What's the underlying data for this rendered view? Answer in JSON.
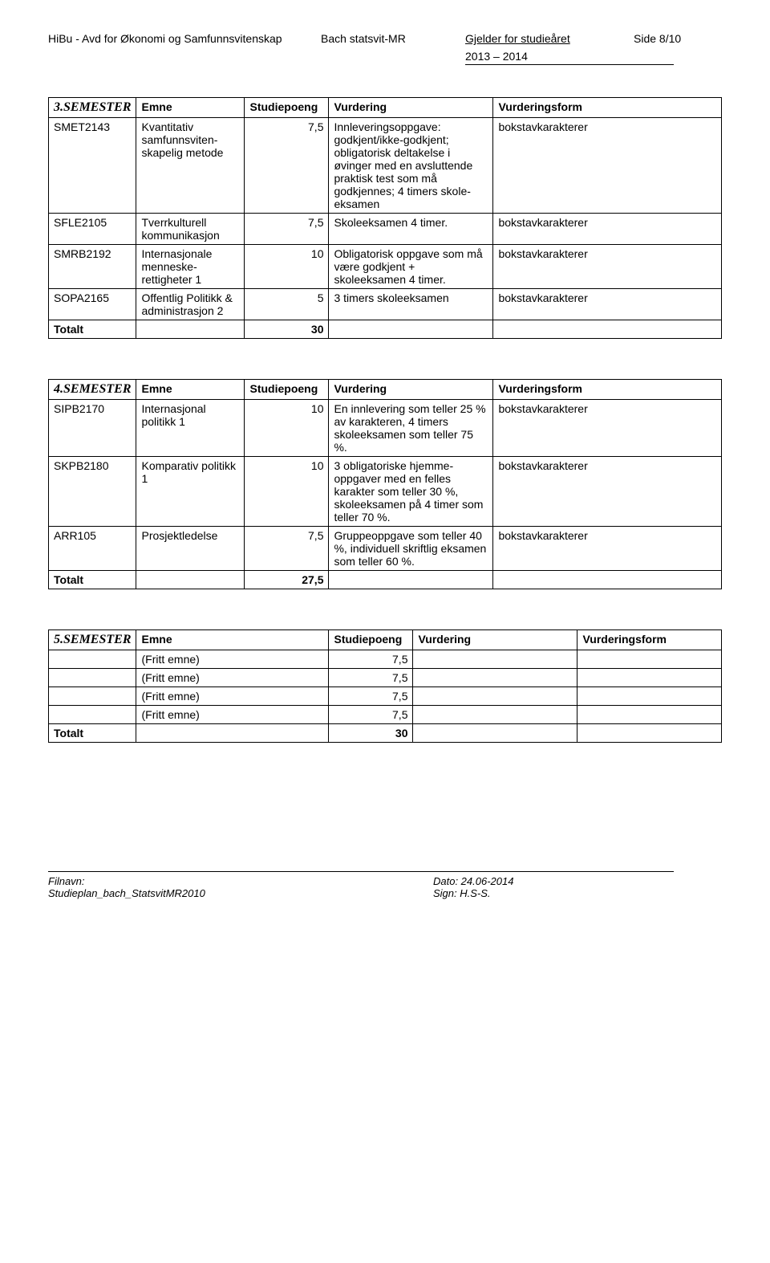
{
  "header": {
    "dept": "HiBu - Avd for Økonomi og Samfunnsvitenskap",
    "program": "Bach statsvit-MR",
    "applies_label": "Gjelder for studieåret",
    "year": "2013 – 2014",
    "page": "Side 8/10"
  },
  "table3": {
    "sem_label": "3.SEMESTER",
    "headers": [
      "Emne",
      "Studiepoeng",
      "Vurdering",
      "Vurderingsform"
    ],
    "rows": [
      {
        "code": "SMET2143",
        "emne": "Kvantitativ samfunnsviten-skapelig metode",
        "sp": "7,5",
        "vurd": "Innleveringsoppgave: godkjent/ikke-godkjent; obligatorisk deltakelse i øvinger med en avsluttende praktisk test som må godkjennes; 4 timers skole-eksamen",
        "form": "bokstavkarakterer"
      },
      {
        "code": "SFLE2105",
        "emne": "Tverrkulturell kommunikasjon",
        "sp": "7,5",
        "vurd": "Skoleeksamen 4 timer.",
        "form": "bokstavkarakterer"
      },
      {
        "code": "SMRB2192",
        "emne": "Internasjonale menneske-rettigheter 1",
        "sp": "10",
        "vurd": "Obligatorisk oppgave som må være godkjent + skoleeksamen 4 timer.",
        "form": "bokstavkarakterer"
      },
      {
        "code": "SOPA2165",
        "emne": "Offentlig Politikk & administrasjon 2",
        "sp": "5",
        "vurd": "3 timers skoleeksamen",
        "form": "bokstavkarakterer"
      }
    ],
    "total_label": "Totalt",
    "total_sp": "30"
  },
  "table4": {
    "sem_label": "4.SEMESTER",
    "headers": [
      "Emne",
      "Studiepoeng",
      "Vurdering",
      "Vurderingsform"
    ],
    "rows": [
      {
        "code": "SIPB2170",
        "emne": "Internasjonal politikk 1",
        "sp": "10",
        "vurd": "En innlevering som teller 25 % av karakteren, 4 timers skoleeksamen som teller 75 %.",
        "form": "bokstavkarakterer"
      },
      {
        "code": "SKPB2180",
        "emne": "Komparativ politikk 1",
        "sp": "10",
        "vurd": "3 obligatoriske hjemme-oppgaver med en felles karakter som teller 30 %, skoleeksamen på 4 timer som teller 70 %.",
        "form": "bokstavkarakterer"
      },
      {
        "code": "ARR105",
        "emne": "Prosjektledelse",
        "sp": "7,5",
        "vurd": "Gruppeoppgave som teller 40 %, individuell skriftlig eksamen som teller 60 %.",
        "form": "bokstavkarakterer"
      }
    ],
    "total_label": "Totalt",
    "total_sp": "27,5"
  },
  "table5": {
    "sem_label": "5.SEMESTER",
    "headers": [
      "Emne",
      "Studiepoeng",
      "Vurdering",
      "Vurderingsform"
    ],
    "rows": [
      {
        "code": "",
        "emne": "(Fritt emne)",
        "sp": "7,5",
        "vurd": "",
        "form": ""
      },
      {
        "code": "",
        "emne": "(Fritt emne)",
        "sp": "7,5",
        "vurd": "",
        "form": ""
      },
      {
        "code": "",
        "emne": "(Fritt emne)",
        "sp": "7,5",
        "vurd": "",
        "form": ""
      },
      {
        "code": "",
        "emne": "(Fritt emne)",
        "sp": "7,5",
        "vurd": "",
        "form": ""
      }
    ],
    "total_label": "Totalt",
    "total_sp": "30"
  },
  "footer": {
    "filnavn_label": "Filnavn:",
    "filnavn": "Studieplan_bach_StatsvitMR2010",
    "dato_label": "Dato: 24.06-2014",
    "sign_label": "Sign: H.S-S."
  }
}
